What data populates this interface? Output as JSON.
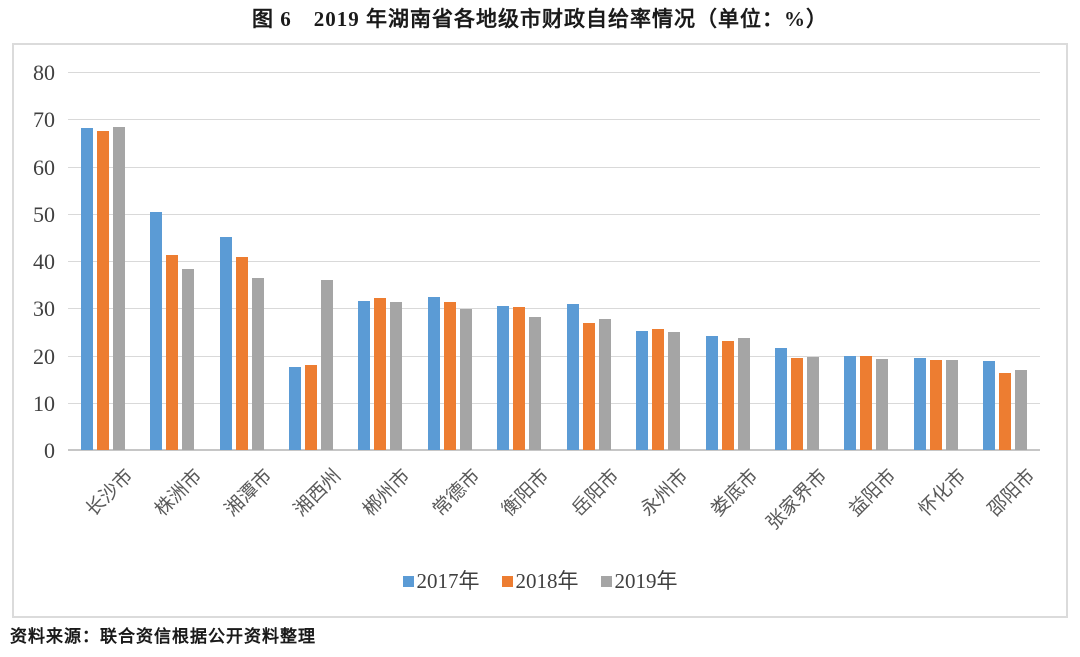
{
  "page": {
    "title": "图 6　2019 年湖南省各地级市财政自给率情况（单位：%）",
    "source_note": "资料来源：联合资信根据公开资料整理"
  },
  "colors": {
    "series_2017": "#5B9BD5",
    "series_2018": "#ED7D31",
    "series_2019": "#A5A5A5",
    "gridline": "#D9D9D9",
    "chart_border": "#DBDBDB",
    "axis_text": "#404040",
    "category_text": "#595959"
  },
  "chart_data": {
    "type": "bar",
    "title": "图 6　2019 年湖南省各地级市财政自给率情况（单位：%）",
    "unit": "%",
    "categories": [
      "长沙市",
      "株洲市",
      "湘潭市",
      "湘西州",
      "郴州市",
      "常德市",
      "衡阳市",
      "岳阳市",
      "永州市",
      "娄底市",
      "张家界市",
      "益阳市",
      "怀化市",
      "邵阳市"
    ],
    "series": [
      {
        "name": "2017年",
        "color": "#5B9BD5",
        "values": [
          68.1,
          50.3,
          45.0,
          17.6,
          31.6,
          32.3,
          30.4,
          30.9,
          25.1,
          24.1,
          21.5,
          20.0,
          19.5,
          18.8
        ]
      },
      {
        "name": "2018年",
        "color": "#ED7D31",
        "values": [
          67.5,
          41.3,
          40.9,
          18.0,
          32.1,
          31.4,
          30.2,
          26.9,
          25.6,
          23.0,
          19.4,
          19.8,
          19.0,
          16.4
        ]
      },
      {
        "name": "2019年",
        "color": "#A5A5A5",
        "values": [
          68.4,
          38.3,
          36.3,
          35.9,
          31.4,
          29.9,
          28.1,
          27.8,
          24.9,
          23.7,
          19.6,
          19.3,
          19.0,
          17.0
        ]
      }
    ],
    "ylim": [
      0,
      80
    ],
    "yticks": [
      0,
      10,
      20,
      30,
      40,
      50,
      60,
      70,
      80
    ],
    "xlabel": "",
    "ylabel": "",
    "grid": true,
    "legend_position": "bottom"
  }
}
